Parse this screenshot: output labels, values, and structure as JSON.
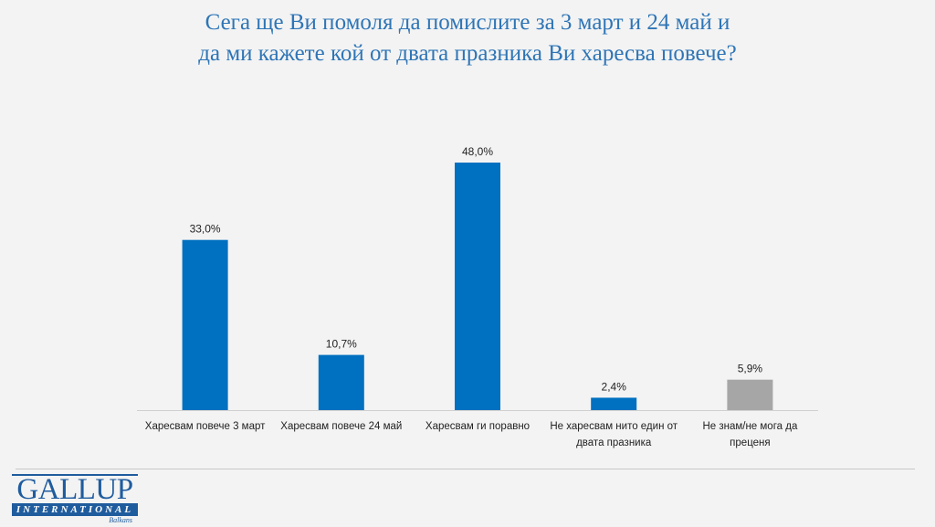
{
  "title_lines": [
    "Сега ще Ви помоля да помислите за 3 март и 24 май и",
    "да ми кажете кой от двата празника Ви харесва повече?"
  ],
  "chart_data": {
    "type": "bar",
    "title": "Сега ще Ви помоля да помислите за 3 март и 24 май и да ми кажете кой от двата празника Ви харесва повече?",
    "categories": [
      [
        "Харесвам повече 3 март"
      ],
      [
        "Харесвам повече 24 май"
      ],
      [
        "Харесвам ги поравно"
      ],
      [
        "Не харесвам нито един от",
        "двата празника"
      ],
      [
        "Не знам/не мога да",
        "преценя"
      ]
    ],
    "values": [
      33.0,
      10.7,
      48.0,
      2.4,
      5.9
    ],
    "data_labels": [
      "33,0%",
      "10,7%",
      "48,0%",
      "2,4%",
      "5,9%"
    ],
    "colors": [
      "#0070c0",
      "#0070c0",
      "#0070c0",
      "#0070c0",
      "#a6a6a6"
    ],
    "ylim": [
      0,
      48
    ],
    "grid": false,
    "legend": "none"
  },
  "logo": {
    "main": "GALLUP",
    "sub": "INTERNATIONAL",
    "region": "Balkans"
  }
}
